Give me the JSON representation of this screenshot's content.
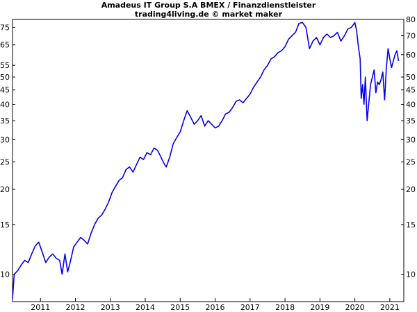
{
  "chart_data": {
    "type": "line",
    "title": "Amadeus IT Group S.A BMEX / Finanzdienstleister",
    "subtitle": "trading4living.de © market maker",
    "xlabel": "",
    "ylabel": "",
    "y_scale": "log",
    "grid": false,
    "legend": "none",
    "color": "#0000ee",
    "xlim": [
      2010.2,
      2021.4
    ],
    "ylim_left": [
      8.0,
      80.0
    ],
    "ylim_right": [
      8.0,
      80.0
    ],
    "x_ticks": [
      "2011",
      "2012",
      "2013",
      "2014",
      "2015",
      "2016",
      "2017",
      "2018",
      "2019",
      "2020",
      "2021"
    ],
    "y_ticks_left": [
      10,
      15,
      20,
      25,
      30,
      35,
      40,
      45,
      50,
      55,
      65,
      75
    ],
    "y_ticks_right": [
      10,
      15,
      20,
      25,
      30,
      35,
      40,
      45,
      50,
      60,
      70,
      80
    ],
    "series": [
      {
        "x": [
          2010.2,
          2010.25,
          2010.35,
          2010.45,
          2010.55,
          2010.65,
          2010.75,
          2010.85,
          2010.95,
          2011.05,
          2011.15,
          2011.25,
          2011.35,
          2011.45,
          2011.55,
          2011.62,
          2011.7,
          2011.78,
          2011.85,
          2011.95,
          2012.05,
          2012.15,
          2012.25,
          2012.35,
          2012.45,
          2012.55,
          2012.65,
          2012.75,
          2012.85,
          2012.95,
          2013.05,
          2013.15,
          2013.25,
          2013.35,
          2013.45,
          2013.55,
          2013.65,
          2013.75,
          2013.85,
          2013.95,
          2014.05,
          2014.15,
          2014.25,
          2014.35,
          2014.45,
          2014.55,
          2014.6,
          2014.7,
          2014.8,
          2014.9,
          2015.0,
          2015.1,
          2015.2,
          2015.3,
          2015.4,
          2015.5,
          2015.6,
          2015.7,
          2015.8,
          2015.9,
          2016.0,
          2016.1,
          2016.2,
          2016.3,
          2016.4,
          2016.5,
          2016.6,
          2016.7,
          2016.8,
          2016.9,
          2017.0,
          2017.1,
          2017.2,
          2017.3,
          2017.4,
          2017.5,
          2017.6,
          2017.7,
          2017.8,
          2017.9,
          2018.0,
          2018.1,
          2018.2,
          2018.3,
          2018.4,
          2018.5,
          2018.6,
          2018.7,
          2018.8,
          2018.9,
          2019.0,
          2019.1,
          2019.2,
          2019.3,
          2019.4,
          2019.5,
          2019.6,
          2019.7,
          2019.8,
          2019.9,
          2020.0,
          2020.05,
          2020.1,
          2020.15,
          2020.18,
          2020.22,
          2020.26,
          2020.3,
          2020.35,
          2020.45,
          2020.55,
          2020.6,
          2020.65,
          2020.7,
          2020.75,
          2020.8,
          2020.85,
          2020.9,
          2020.95,
          2021.0,
          2021.05,
          2021.1,
          2021.15,
          2021.2,
          2021.25
        ],
        "y": [
          8.2,
          10.0,
          10.3,
          10.8,
          11.2,
          11.0,
          11.8,
          12.6,
          13.0,
          12.0,
          11.0,
          11.5,
          11.8,
          11.4,
          11.2,
          10.0,
          11.8,
          10.2,
          11.0,
          12.5,
          13.0,
          13.5,
          13.2,
          12.8,
          14.0,
          15.0,
          15.8,
          16.2,
          17.0,
          18.0,
          19.5,
          20.5,
          21.5,
          22.0,
          23.5,
          24.0,
          23.0,
          24.5,
          26.0,
          25.5,
          27.0,
          26.5,
          28.0,
          27.5,
          26.0,
          24.5,
          24.0,
          26.0,
          29.0,
          30.5,
          32.0,
          35.0,
          38.0,
          36.0,
          34.0,
          35.0,
          36.5,
          33.5,
          35.0,
          34.0,
          33.0,
          33.5,
          35.0,
          37.0,
          37.5,
          39.0,
          41.0,
          41.5,
          40.5,
          42.0,
          43.5,
          46.0,
          48.0,
          50.0,
          53.0,
          55.0,
          58.0,
          59.0,
          61.0,
          62.0,
          64.0,
          68.0,
          70.0,
          72.0,
          77.5,
          78.0,
          75.0,
          63.0,
          67.0,
          69.0,
          65.0,
          69.0,
          71.0,
          69.0,
          70.0,
          72.0,
          67.0,
          70.0,
          74.0,
          75.0,
          78.0,
          73.0,
          64.0,
          58.0,
          42.0,
          47.0,
          40.0,
          50.0,
          35.0,
          47.0,
          53.0,
          44.0,
          48.0,
          47.0,
          49.0,
          52.0,
          41.5,
          54.0,
          63.0,
          58.0,
          54.0,
          57.0,
          60.0,
          62.0,
          57.0
        ]
      }
    ]
  }
}
